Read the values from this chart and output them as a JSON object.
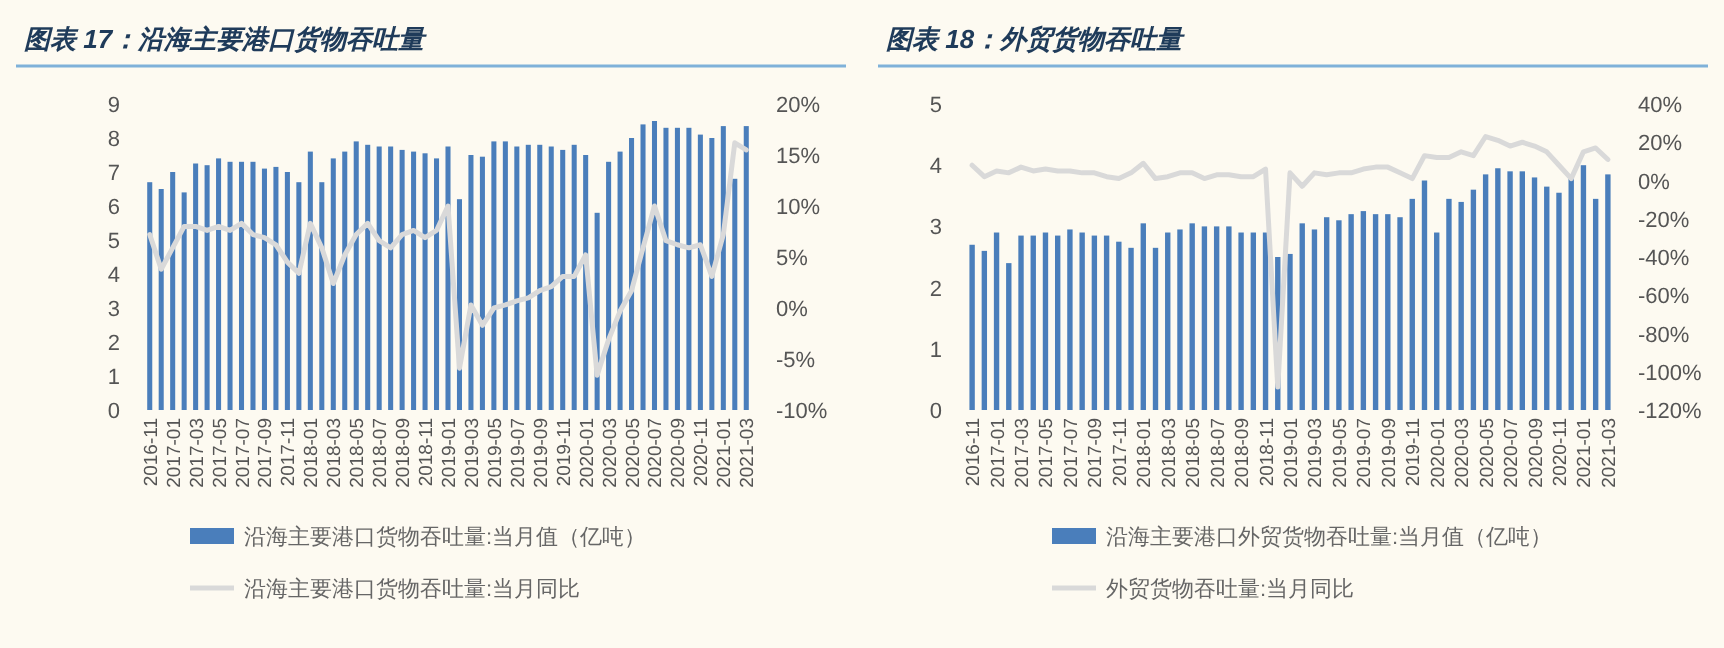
{
  "chart_data": [
    {
      "type": "bar",
      "title": "图表 17：沿海主要港口货物吞吐量",
      "categories": [
        "2016-11",
        null,
        "2017-01",
        null,
        "2017-03",
        null,
        "2017-05",
        null,
        "2017-07",
        null,
        "2017-09",
        null,
        "2017-11",
        null,
        "2018-01",
        null,
        "2018-03",
        null,
        "2018-05",
        null,
        "2018-07",
        null,
        "2018-09",
        null,
        "2018-11",
        null,
        "2019-01",
        null,
        "2019-03",
        null,
        "2019-05",
        null,
        "2019-07",
        null,
        "2019-09",
        null,
        "2019-11",
        null,
        "2020-01",
        null,
        "2020-03",
        null,
        "2020-05",
        null,
        "2020-07",
        null,
        "2020-09",
        null,
        "2020-11",
        null,
        "2021-01",
        null,
        "2021-03"
      ],
      "series": [
        {
          "name": "沿海主要港口货物吞吐量:当月值（亿吨）",
          "color": "#4a7ebb",
          "values": [
            6.7,
            6.5,
            7.0,
            6.4,
            7.25,
            7.2,
            7.4,
            7.3,
            7.3,
            7.3,
            7.1,
            7.15,
            7.0,
            6.7,
            7.6,
            6.7,
            7.4,
            7.6,
            7.9,
            7.8,
            7.75,
            7.75,
            7.65,
            7.6,
            7.55,
            7.4,
            7.75,
            6.2,
            7.5,
            7.45,
            7.9,
            7.9,
            7.75,
            7.8,
            7.8,
            7.75,
            7.65,
            7.8,
            7.5,
            5.8,
            7.3,
            7.6,
            8.0,
            8.4,
            8.5,
            8.3,
            8.3,
            8.3,
            8.1,
            8.0,
            8.35,
            6.8,
            8.35
          ]
        },
        {
          "name": "沿海主要港口货物吞吐量:当月同比",
          "type": "line",
          "axis": "y2",
          "color": "#d9d9d9",
          "values": [
            7.2,
            3.8,
            5.9,
            8.0,
            8.0,
            7.6,
            8.0,
            7.6,
            8.3,
            7.2,
            6.9,
            6.2,
            4.5,
            3.4,
            8.3,
            5.9,
            2.4,
            5.2,
            7.2,
            8.3,
            6.6,
            5.9,
            7.2,
            7.6,
            6.9,
            7.6,
            10.0,
            -5.9,
            0.3,
            -1.7,
            0.0,
            0.3,
            0.7,
            1.0,
            1.7,
            2.1,
            3.1,
            3.1,
            5.2,
            -6.6,
            -3.1,
            -0.3,
            1.7,
            5.9,
            10.0,
            6.6,
            6.2,
            5.9,
            6.2,
            3.1,
            7.2,
            16.2,
            15.5
          ]
        }
      ],
      "ylim": [
        0,
        9
      ],
      "yticks": [
        0,
        1,
        2,
        3,
        4,
        5,
        6,
        7,
        8,
        9
      ],
      "y2lim": [
        -10,
        20
      ],
      "y2ticks": [
        {
          "value": -10,
          "label": "-10%"
        },
        {
          "value": -5,
          "label": "-5%"
        },
        {
          "value": 0,
          "label": "0%"
        },
        {
          "value": 5,
          "label": "5%"
        },
        {
          "value": 10,
          "label": "10%"
        },
        {
          "value": 15,
          "label": "15%"
        },
        {
          "value": 20,
          "label": "20%"
        }
      ],
      "legend": "bottom",
      "marker": "none",
      "line_style": "solid"
    },
    {
      "type": "bar",
      "title": "图表 18：外贸货物吞吐量",
      "categories": [
        "2016-11",
        null,
        "2017-01",
        null,
        "2017-03",
        null,
        "2017-05",
        null,
        "2017-07",
        null,
        "2017-09",
        null,
        "2017-11",
        null,
        "2018-01",
        null,
        "2018-03",
        null,
        "2018-05",
        null,
        "2018-07",
        null,
        "2018-09",
        null,
        "2018-11",
        null,
        "2019-01",
        null,
        "2019-03",
        null,
        "2019-05",
        null,
        "2019-07",
        null,
        "2019-09",
        null,
        "2019-11",
        null,
        "2020-01",
        null,
        "2020-03",
        null,
        "2020-05",
        null,
        "2020-07",
        null,
        "2020-09",
        null,
        "2020-11",
        null,
        "2021-01",
        null,
        "2021-03"
      ],
      "series": [
        {
          "name": "沿海主要港口外贸货物吞吐量:当月值（亿吨）",
          "color": "#4a7ebb",
          "values": [
            2.7,
            2.6,
            2.9,
            2.4,
            2.85,
            2.85,
            2.9,
            2.85,
            2.95,
            2.9,
            2.85,
            2.85,
            2.75,
            2.65,
            3.05,
            2.65,
            2.9,
            2.95,
            3.05,
            3.0,
            3.0,
            3.0,
            2.9,
            2.9,
            2.9,
            2.5,
            2.55,
            3.05,
            2.95,
            3.15,
            3.1,
            3.2,
            3.25,
            3.2,
            3.2,
            3.15,
            3.45,
            3.75,
            2.9,
            3.45,
            3.4,
            3.6,
            3.85,
            3.95,
            3.9,
            3.9,
            3.8,
            3.65,
            3.55,
            3.8,
            4.0,
            3.45,
            3.85
          ]
        },
        {
          "name": "外贸货物吞吐量:当月同比",
          "type": "line",
          "axis": "y2",
          "color": "#d9d9d9",
          "values": [
            8,
            2,
            5,
            4,
            7,
            5,
            6,
            5,
            5,
            4,
            4,
            2,
            1,
            4,
            9,
            1,
            2,
            4,
            4,
            1,
            3,
            3,
            2,
            2,
            6,
            -108,
            4,
            -3,
            4,
            3,
            4,
            4,
            6,
            7,
            7,
            4,
            1,
            13,
            12,
            12,
            15,
            13,
            23,
            21,
            18,
            20,
            18,
            15,
            8,
            1,
            15,
            17,
            11
          ]
        }
      ],
      "ylim": [
        0,
        5
      ],
      "yticks": [
        0,
        1,
        2,
        3,
        4,
        5
      ],
      "y2lim": [
        -120,
        40
      ],
      "y2ticks": [
        {
          "value": -120,
          "label": "-120%"
        },
        {
          "value": -100,
          "label": "-100%"
        },
        {
          "value": -80,
          "label": "-80%"
        },
        {
          "value": -60,
          "label": "-60%"
        },
        {
          "value": -40,
          "label": "-40%"
        },
        {
          "value": -20,
          "label": "-20%"
        },
        {
          "value": 0,
          "label": "0%"
        },
        {
          "value": 20,
          "label": "20%"
        },
        {
          "value": 40,
          "label": "40%"
        }
      ],
      "legend": "bottom",
      "marker": "none",
      "line_style": "solid"
    }
  ]
}
